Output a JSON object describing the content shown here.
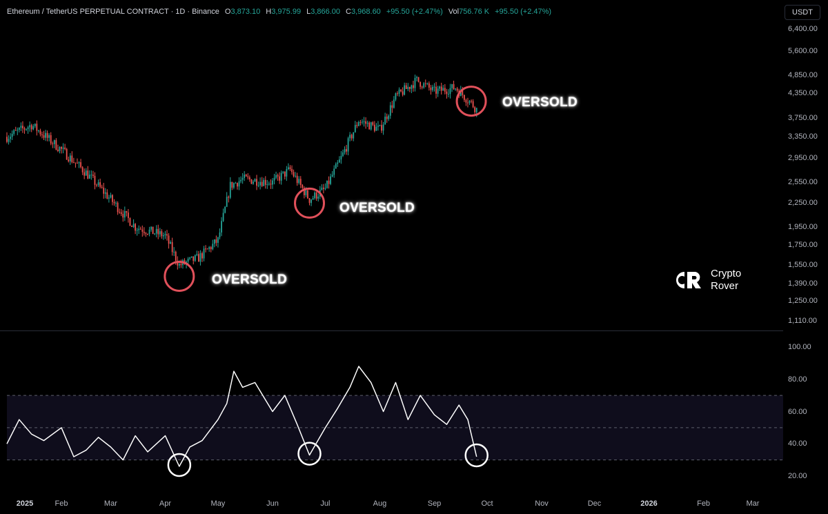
{
  "header": {
    "symbol": "Ethereum / TetherUS PERPETUAL CONTRACT · 1D · Binance",
    "open_label": "O",
    "open": "3,873.10",
    "high_label": "H",
    "high": "3,975.99",
    "low_label": "L",
    "low": "3,866.00",
    "close_label": "C",
    "close": "3,968.60",
    "change": "+95.50 (+2.47%)",
    "vol_label": "Vol",
    "vol": "756.76 K",
    "vol_change": "+95.50 (+2.47%)"
  },
  "currency": "USDT",
  "logo": {
    "line1": "Crypto",
    "line2": "Rover"
  },
  "annotations": [
    "OVERSOLD",
    "OVERSOLD",
    "OVERSOLD"
  ],
  "colors": {
    "up": "#26a69a",
    "down": "#ef5350",
    "circle_price": "#e0505a",
    "circle_rsi": "#ffffff",
    "rsi_line": "#ffffff"
  },
  "chart_data": [
    {
      "type": "candlestick",
      "log_scale": true,
      "y_ticks": [
        "6,400.00",
        "5,600.00",
        "4,850.00",
        "4,350.00",
        "3,750.00",
        "3,350.00",
        "2,950.00",
        "2,550.00",
        "2,250.00",
        "1,950.00",
        "1,750.00",
        "1,550.00",
        "1,390.00",
        "1,250.00",
        "1,110.00"
      ],
      "x_ticks": [
        "2025",
        "Feb",
        "Mar",
        "Apr",
        "May",
        "Jun",
        "Jul",
        "Aug",
        "Sep",
        "Oct",
        "Nov",
        "Dec",
        "2026",
        "Feb",
        "Mar"
      ],
      "x": [
        "2025-01-01",
        "2025-01-15",
        "2025-02-01",
        "2025-02-15",
        "2025-03-01",
        "2025-03-15",
        "2025-04-01",
        "2025-04-09",
        "2025-04-20",
        "2025-05-01",
        "2025-05-08",
        "2025-05-15",
        "2025-06-01",
        "2025-06-11",
        "2025-06-22",
        "2025-07-01",
        "2025-07-10",
        "2025-07-20",
        "2025-08-01",
        "2025-08-10",
        "2025-08-22",
        "2025-09-01",
        "2025-09-13",
        "2025-09-22",
        "2025-09-25"
      ],
      "close": [
        3350,
        3600,
        3100,
        2700,
        2300,
        1950,
        1850,
        1550,
        1620,
        1800,
        2500,
        2600,
        2550,
        2750,
        2300,
        2450,
        2950,
        3700,
        3500,
        4250,
        4700,
        4400,
        4500,
        4100,
        3950
      ]
    },
    {
      "type": "line",
      "name": "RSI",
      "y_ticks": [
        "100.00",
        "80.00",
        "60.00",
        "40.00",
        "20.00"
      ],
      "ylim": [
        20,
        100
      ],
      "bands": [
        30,
        50,
        70
      ],
      "x": [
        "2025-01-01",
        "2025-01-08",
        "2025-01-15",
        "2025-01-22",
        "2025-02-01",
        "2025-02-08",
        "2025-02-15",
        "2025-02-22",
        "2025-03-01",
        "2025-03-08",
        "2025-03-15",
        "2025-03-22",
        "2025-04-01",
        "2025-04-09",
        "2025-04-15",
        "2025-04-22",
        "2025-05-01",
        "2025-05-06",
        "2025-05-10",
        "2025-05-15",
        "2025-05-22",
        "2025-06-01",
        "2025-06-08",
        "2025-06-15",
        "2025-06-22",
        "2025-07-01",
        "2025-07-08",
        "2025-07-15",
        "2025-07-20",
        "2025-07-27",
        "2025-08-03",
        "2025-08-10",
        "2025-08-17",
        "2025-08-24",
        "2025-09-01",
        "2025-09-08",
        "2025-09-15",
        "2025-09-20",
        "2025-09-25"
      ],
      "values": [
        40,
        55,
        46,
        42,
        50,
        32,
        36,
        44,
        38,
        30,
        45,
        35,
        45,
        26,
        38,
        42,
        55,
        65,
        85,
        75,
        78,
        60,
        70,
        52,
        33,
        50,
        62,
        75,
        88,
        78,
        60,
        78,
        55,
        70,
        58,
        52,
        64,
        55,
        32
      ]
    }
  ]
}
